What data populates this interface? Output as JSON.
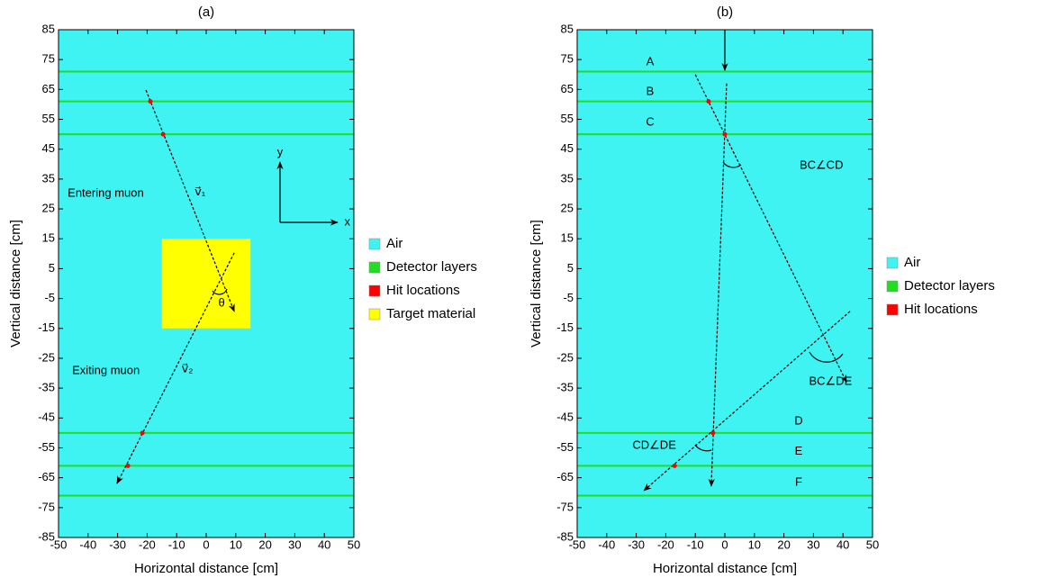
{
  "chart_data": [
    {
      "type": "scatter",
      "title": "(a)",
      "x_label": "Horizontal distance [cm]",
      "y_label": "Vertical distance [cm]",
      "xlim": [
        -50,
        50
      ],
      "ylim": [
        -85,
        85
      ],
      "xticks": [
        -50,
        -40,
        -30,
        -20,
        -10,
        0,
        10,
        20,
        30,
        40,
        50
      ],
      "yticks": [
        -85,
        -75,
        -65,
        -55,
        -45,
        -35,
        -25,
        -15,
        -5,
        5,
        15,
        25,
        35,
        45,
        55,
        65,
        75,
        85
      ],
      "series": [
        {
          "name": "Air",
          "color": "#3ff3f3",
          "kind": "fill"
        },
        {
          "name": "Detector layers",
          "color": "#22dd22",
          "kind": "hline",
          "values": [
            71,
            61,
            50,
            -50,
            -61,
            -71
          ]
        },
        {
          "name": "Hit locations",
          "color": "#ff0000",
          "kind": "point",
          "x": [
            -18.9,
            -14.6,
            -21.6,
            -26.5
          ],
          "values": [
            61,
            50,
            -50,
            -61
          ]
        },
        {
          "name": "Target material",
          "color": "#ffff00",
          "kind": "rect",
          "x": [
            -15,
            15
          ],
          "values": [
            -15,
            15
          ]
        }
      ],
      "tracks": [
        {
          "style": "dashed",
          "x": [
            -20.4,
            9.5
          ],
          "values": [
            64.8,
            -9.3
          ]
        },
        {
          "style": "dashed",
          "x": [
            9.5,
            -30.2
          ],
          "values": [
            10.3,
            -66.9
          ]
        }
      ],
      "annotations": [
        "Entering muon",
        "Exiting muon",
        "v⃗₁",
        "v⃗₂",
        "θ",
        "y",
        "x"
      ]
    },
    {
      "type": "scatter",
      "title": "(b)",
      "x_label": "Horizontal distance [cm]",
      "y_label": "Vertical distance [cm]",
      "xlim": [
        -50,
        50
      ],
      "ylim": [
        -85,
        85
      ],
      "xticks": [
        -50,
        -40,
        -30,
        -20,
        -10,
        0,
        10,
        20,
        30,
        40,
        50
      ],
      "yticks": [
        -85,
        -75,
        -65,
        -55,
        -45,
        -35,
        -25,
        -15,
        -5,
        5,
        15,
        25,
        35,
        45,
        55,
        65,
        75,
        85
      ],
      "series": [
        {
          "name": "Air",
          "color": "#3ff3f3",
          "kind": "fill"
        },
        {
          "name": "Detector layers",
          "color": "#22dd22",
          "kind": "hline",
          "values": [
            71,
            61,
            50,
            -50,
            -61,
            -71
          ]
        },
        {
          "name": "Hit locations",
          "color": "#ff0000",
          "kind": "point",
          "x": [
            -5.5,
            0,
            -4,
            -17
          ],
          "values": [
            61,
            50,
            -50,
            -61
          ]
        }
      ],
      "tracks": [
        {
          "style": "solid",
          "x": [
            0,
            0
          ],
          "values": [
            85,
            71.4
          ]
        },
        {
          "style": "dashed",
          "x": [
            -10,
            41.2
          ],
          "values": [
            70,
            -33
          ]
        },
        {
          "style": "dashed",
          "x": [
            0.6,
            -4.6
          ],
          "values": [
            67,
            -67.8
          ]
        },
        {
          "style": "dashed",
          "x": [
            42.4,
            -27.4
          ],
          "values": [
            -9.3,
            -69.3
          ]
        }
      ],
      "annotations": [
        "A",
        "B",
        "C",
        "D",
        "E",
        "F",
        "BC∠CD",
        "BC∠DE",
        "CD∠DE"
      ]
    }
  ]
}
